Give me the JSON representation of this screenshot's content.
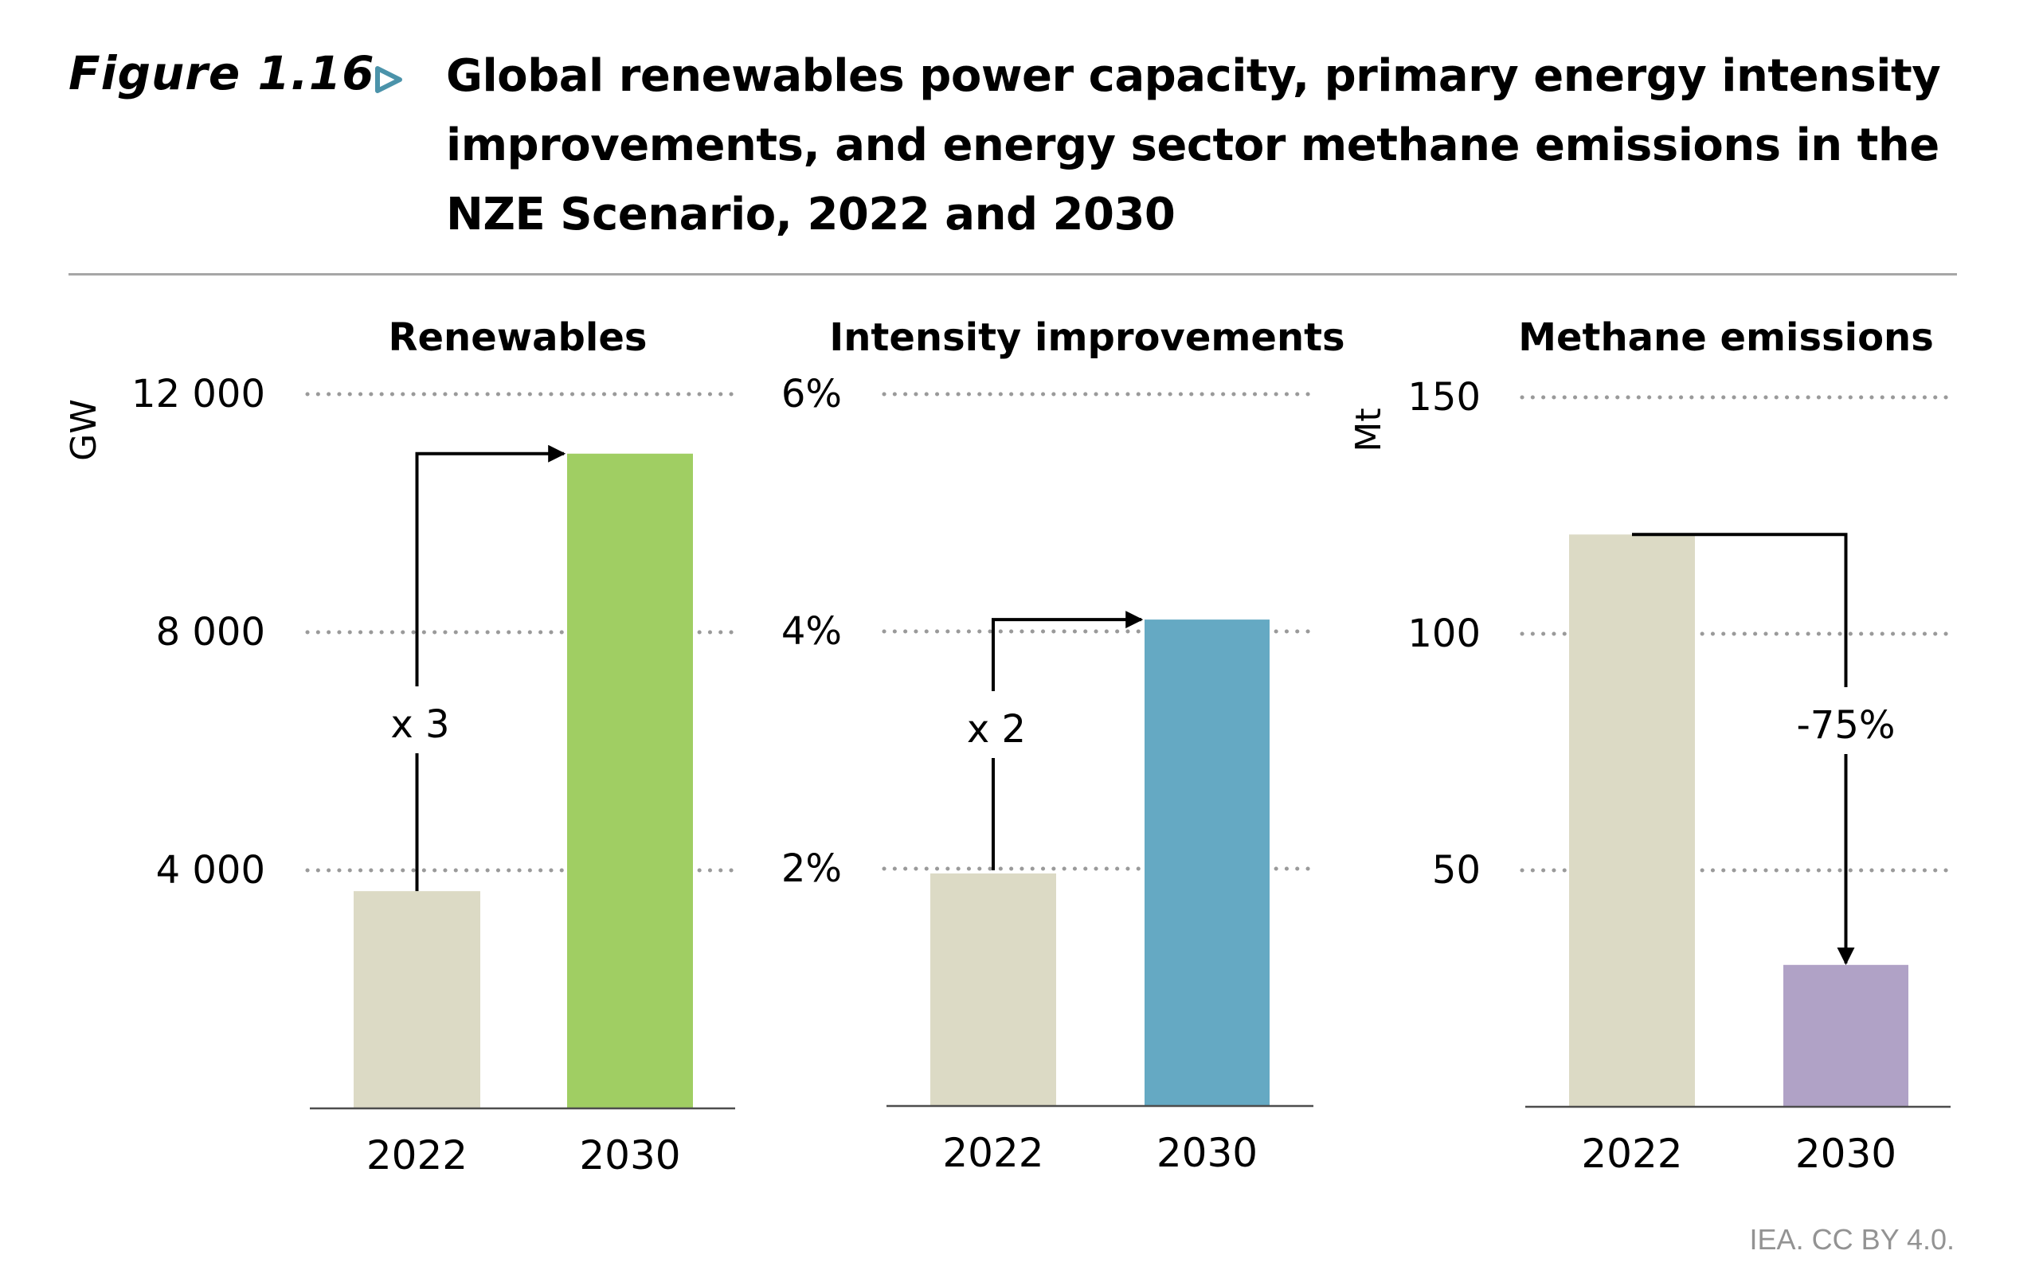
{
  "figure": {
    "label": "Figure 1.16",
    "label_icon": "triangle-right-outline-icon",
    "accent_color": "#4b93aa",
    "title_lines": [
      "Global renewables power capacity, primary energy intensity",
      "improvements, and energy sector methane emissions in the",
      "NZE Scenario, 2022 and 2030"
    ],
    "source": "IEA. CC BY 4.0."
  },
  "chart_data": [
    {
      "type": "bar",
      "title": "Renewables",
      "ylabel": "GW",
      "xlabel": "",
      "categories": [
        "2022",
        "2030"
      ],
      "values": [
        3650,
        11000
      ],
      "colors": [
        "#dcdac5",
        "#a0ce63"
      ],
      "ylim": [
        0,
        12000
      ],
      "yticks": [
        4000,
        8000,
        12000
      ],
      "ytick_labels": [
        "4 000",
        "8 000",
        "12 000"
      ],
      "grid": true,
      "annotation": {
        "text": "x 3",
        "direction": "up",
        "from": "2022",
        "to": "2030"
      }
    },
    {
      "type": "bar",
      "title": "Intensity improvements",
      "ylabel": "",
      "xlabel": "",
      "categories": [
        "2022",
        "2030"
      ],
      "values": [
        1.96,
        4.1
      ],
      "colors": [
        "#dcdac5",
        "#65a9c3"
      ],
      "ylim": [
        0,
        6
      ],
      "yticks": [
        2,
        4,
        6
      ],
      "ytick_labels": [
        "2%",
        "4%",
        "6%"
      ],
      "grid": true,
      "annotation": {
        "text": "x 2",
        "direction": "up",
        "from": "2022",
        "to": "2030"
      }
    },
    {
      "type": "bar",
      "title": "Methane emissions",
      "ylabel": "Mt",
      "xlabel": "",
      "categories": [
        "2022",
        "2030"
      ],
      "values": [
        121,
        30
      ],
      "colors": [
        "#dcdac5",
        "#b0a2c6"
      ],
      "ylim": [
        0,
        150
      ],
      "yticks": [
        50,
        100,
        150
      ],
      "ytick_labels": [
        "50",
        "100",
        "150"
      ],
      "grid": true,
      "annotation": {
        "text": "-75%",
        "direction": "down",
        "from": "2022",
        "to": "2030"
      }
    }
  ]
}
